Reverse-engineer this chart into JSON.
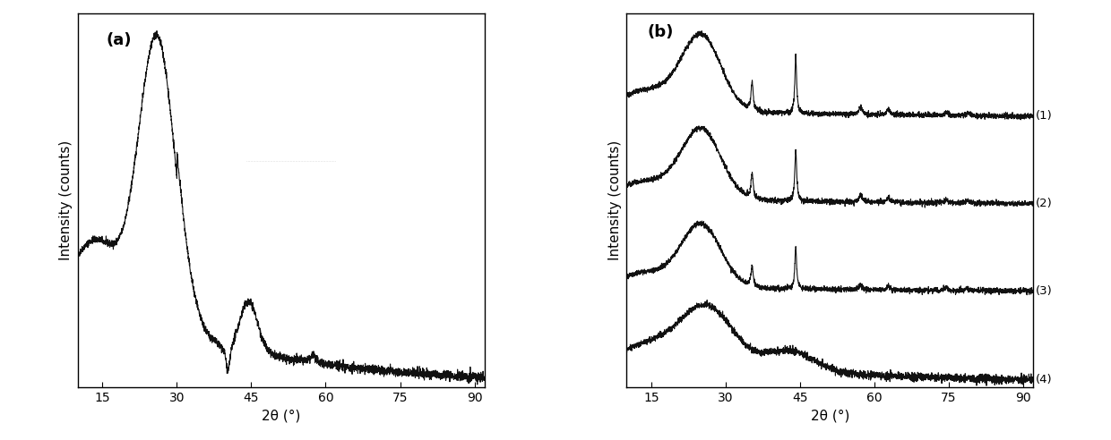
{
  "panel_a_label": "(a)",
  "panel_b_label": "(b)",
  "xlabel": "2θ (°)",
  "ylabel": "Intensity (counts)",
  "xlim": [
    10,
    92
  ],
  "xticks": [
    15,
    30,
    45,
    60,
    75,
    90
  ],
  "line_color": "#111111",
  "curve_labels": [
    "(1)",
    "(2)",
    "(3)",
    "(4)"
  ],
  "seed": 42
}
